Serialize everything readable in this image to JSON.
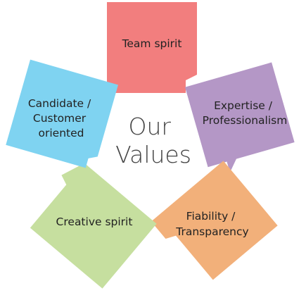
{
  "title_lines": [
    "Our",
    "Values"
  ],
  "values": [
    {
      "id": "team-spirit",
      "lines": [
        "Team spirit"
      ],
      "color": "#f27e7e"
    },
    {
      "id": "expertise",
      "lines": [
        "Expertise /",
        "Professionalism"
      ],
      "color": "#b497c6"
    },
    {
      "id": "fiability",
      "lines": [
        "Fiability /",
        "Transparency"
      ],
      "color": "#f2b07a"
    },
    {
      "id": "creative-spirit",
      "lines": [
        "Creative spirit"
      ],
      "color": "#c6df9f"
    },
    {
      "id": "candidate-customer",
      "lines": [
        "Candidate /",
        "Customer",
        "oriented"
      ],
      "color": "#7fd3f1"
    }
  ]
}
